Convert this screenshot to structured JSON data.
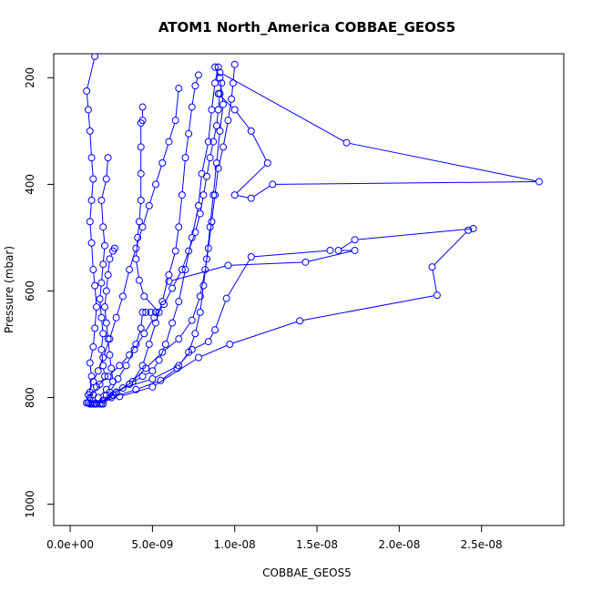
{
  "chart_data": {
    "type": "scatter",
    "title": "ATOM1 North_America COBBAE_GEOS5",
    "xlabel": "COBBAE_GEOS5",
    "ylabel": "Pressure (mbar)",
    "xlim": [
      -1e-09,
      3e-08
    ],
    "ylim": [
      1040,
      155
    ],
    "y_reversed": true,
    "x_ticks": [
      0,
      5e-09,
      1e-08,
      1.5e-08,
      2e-08,
      2.5e-08
    ],
    "x_tick_labels": [
      "0.0e+00",
      "5.0e-09",
      "1.0e-08",
      "1.5e-08",
      "2.0e-08",
      "2.5e-08"
    ],
    "y_ticks": [
      200,
      400,
      600,
      800,
      1000
    ],
    "y_tick_labels": [
      "200",
      "400",
      "600",
      "800",
      "1000"
    ],
    "grid": false,
    "marker": "open-circle",
    "color": "#0000ff",
    "series": [
      {
        "points": [
          [
            1e-09,
            810
          ],
          [
            1.2e-09,
            790
          ],
          [
            1.3e-09,
            760
          ],
          [
            1.2e-09,
            735
          ],
          [
            1.4e-09,
            705
          ],
          [
            1.5e-09,
            670
          ],
          [
            1.6e-09,
            630
          ],
          [
            1.5e-09,
            590
          ],
          [
            1.4e-09,
            560
          ],
          [
            1.3e-09,
            510
          ],
          [
            1.2e-09,
            470
          ],
          [
            1.3e-09,
            430
          ],
          [
            1.4e-09,
            390
          ],
          [
            1.3e-09,
            350
          ],
          [
            1.2e-09,
            300
          ],
          [
            1.1e-09,
            260
          ],
          [
            1e-09,
            225
          ],
          [
            1.5e-09,
            160
          ]
        ]
      },
      {
        "points": [
          [
            1.1e-09,
            810
          ],
          [
            1.4e-09,
            795
          ],
          [
            1.8e-09,
            775
          ],
          [
            2.1e-09,
            760
          ],
          [
            2e-09,
            740
          ],
          [
            1.9e-09,
            710
          ],
          [
            2e-09,
            680
          ],
          [
            1.9e-09,
            650
          ],
          [
            1.8e-09,
            615
          ],
          [
            1.9e-09,
            585
          ],
          [
            2e-09,
            550
          ],
          [
            2.1e-09,
            515
          ],
          [
            2e-09,
            480
          ],
          [
            1.9e-09,
            430
          ],
          [
            2.2e-09,
            390
          ],
          [
            2.3e-09,
            350
          ]
        ]
      },
      {
        "points": [
          [
            1.2e-09,
            812
          ],
          [
            1.7e-09,
            800
          ],
          [
            2.2e-09,
            785
          ],
          [
            2.6e-09,
            770
          ],
          [
            2.5e-09,
            745
          ],
          [
            2.4e-09,
            720
          ],
          [
            2.3e-09,
            690
          ],
          [
            2.2e-09,
            660
          ],
          [
            2.1e-09,
            630
          ],
          [
            2.2e-09,
            600
          ],
          [
            2.3e-09,
            570
          ],
          [
            2.4e-09,
            540
          ],
          [
            2.6e-09,
            525
          ],
          [
            2.7e-09,
            520
          ]
        ]
      },
      {
        "points": [
          [
            1.3e-09,
            812
          ],
          [
            2e-09,
            805
          ],
          [
            2.8e-09,
            790
          ],
          [
            3.6e-09,
            775
          ],
          [
            4.4e-09,
            760
          ],
          [
            5e-09,
            750
          ],
          [
            5.4e-09,
            730
          ],
          [
            5.8e-09,
            700
          ],
          [
            6.2e-09,
            660
          ],
          [
            6.6e-09,
            620
          ],
          [
            7e-09,
            560
          ],
          [
            7.4e-09,
            500
          ],
          [
            7.8e-09,
            440
          ],
          [
            8e-09,
            380
          ],
          [
            8.4e-09,
            320
          ],
          [
            8.6e-09,
            260
          ],
          [
            8.8e-09,
            210
          ],
          [
            9e-09,
            180
          ]
        ]
      },
      {
        "points": [
          [
            1.4e-09,
            812
          ],
          [
            2.5e-09,
            800
          ],
          [
            4e-09,
            785
          ],
          [
            5.5e-09,
            768
          ],
          [
            6.5e-09,
            745
          ],
          [
            7.2e-09,
            715
          ],
          [
            7.6e-09,
            680
          ],
          [
            7.9e-09,
            640
          ],
          [
            8.1e-09,
            590
          ],
          [
            8.3e-09,
            540
          ],
          [
            8.5e-09,
            480
          ],
          [
            8.7e-09,
            420
          ],
          [
            8.9e-09,
            360
          ],
          [
            9.1e-09,
            300
          ],
          [
            9.3e-09,
            250
          ],
          [
            9.1e-09,
            200
          ],
          [
            8.8e-09,
            180
          ]
        ]
      },
      {
        "points": [
          [
            1.5e-09,
            812
          ],
          [
            3e-09,
            798
          ],
          [
            5e-09,
            780
          ],
          [
            7.8e-09,
            725
          ],
          [
            9.7e-09,
            700
          ],
          [
            1.395e-08,
            656
          ],
          [
            2.23e-08,
            608
          ],
          [
            2.2e-08,
            555
          ],
          [
            2.42e-08,
            486
          ],
          [
            2.45e-08,
            483
          ],
          [
            1.73e-08,
            504
          ],
          [
            1.63e-08,
            524
          ],
          [
            1.73e-08,
            524
          ],
          [
            1.43e-08,
            546
          ],
          [
            9.6e-09,
            552
          ],
          [
            6e-09,
            582
          ]
        ]
      },
      {
        "points": [
          [
            1.6e-09,
            812
          ],
          [
            2.2e-09,
            796
          ],
          [
            3.2e-09,
            782
          ],
          [
            5e-09,
            765
          ],
          [
            6.6e-09,
            740
          ],
          [
            7.4e-09,
            710
          ],
          [
            8.4e-09,
            695
          ],
          [
            8.8e-09,
            673
          ],
          [
            9.5e-09,
            614
          ],
          [
            1.1e-08,
            536
          ],
          [
            1.58e-08,
            524
          ]
        ]
      },
      {
        "points": [
          [
            1.8e-09,
            812
          ],
          [
            2.6e-09,
            795
          ],
          [
            3.6e-09,
            775
          ],
          [
            4.6e-09,
            745
          ],
          [
            5.6e-09,
            715
          ],
          [
            6.6e-09,
            690
          ],
          [
            7.4e-09,
            655
          ],
          [
            7.9e-09,
            610
          ],
          [
            8.2e-09,
            560
          ],
          [
            8.4e-09,
            520
          ],
          [
            8.6e-09,
            470
          ],
          [
            8.8e-09,
            420
          ],
          [
            9e-09,
            370
          ],
          [
            9.3e-09,
            330
          ],
          [
            9.6e-09,
            280
          ],
          [
            9.8e-09,
            240
          ],
          [
            9.9e-09,
            210
          ],
          [
            1e-08,
            175
          ]
        ]
      },
      {
        "points": [
          [
            9e-09,
            230
          ],
          [
            1e-08,
            260
          ],
          [
            1.1e-08,
            300
          ],
          [
            1.2e-08,
            360
          ],
          [
            1e-08,
            420
          ],
          [
            1.1e-08,
            426
          ],
          [
            1.23e-08,
            400
          ],
          [
            2.85e-08,
            395
          ],
          [
            1.68e-08,
            322
          ],
          [
            9.1e-09,
            190
          ]
        ]
      },
      {
        "points": [
          [
            1.2e-09,
            800
          ],
          [
            1.6e-09,
            780
          ],
          [
            2.3e-09,
            760
          ],
          [
            3e-09,
            740
          ],
          [
            3.6e-09,
            720
          ],
          [
            4e-09,
            700
          ],
          [
            4.3e-09,
            670
          ],
          [
            4.4e-09,
            640
          ],
          [
            4.6e-09,
            640
          ],
          [
            4.9e-09,
            640
          ],
          [
            5.2e-09,
            640
          ],
          [
            5.4e-09,
            640
          ],
          [
            4.5e-09,
            610
          ],
          [
            4.2e-09,
            580
          ],
          [
            4e-09,
            540
          ],
          [
            4.1e-09,
            500
          ],
          [
            4.2e-09,
            470
          ],
          [
            4.3e-09,
            430
          ],
          [
            4.3e-09,
            380
          ],
          [
            4.3e-09,
            330
          ],
          [
            4.3e-09,
            285
          ],
          [
            4.4e-09,
            280
          ],
          [
            4.4e-09,
            255
          ]
        ]
      },
      {
        "points": [
          [
            2e-09,
            812
          ],
          [
            2.8e-09,
            790
          ],
          [
            3.8e-09,
            770
          ],
          [
            4.4e-09,
            740
          ],
          [
            4.8e-09,
            700
          ],
          [
            5.2e-09,
            660
          ],
          [
            5.6e-09,
            620
          ],
          [
            6e-09,
            570
          ],
          [
            6.4e-09,
            525
          ],
          [
            6.6e-09,
            480
          ],
          [
            6.8e-09,
            420
          ],
          [
            7e-09,
            350
          ],
          [
            7.2e-09,
            305
          ],
          [
            7.4e-09,
            255
          ],
          [
            7.6e-09,
            215
          ],
          [
            7.8e-09,
            195
          ]
        ]
      },
      {
        "points": [
          [
            1.1e-09,
            795
          ],
          [
            1.4e-09,
            770
          ],
          [
            1.7e-09,
            750
          ],
          [
            2e-09,
            725
          ],
          [
            2.4e-09,
            690
          ],
          [
            2.8e-09,
            650
          ],
          [
            3.2e-09,
            610
          ],
          [
            3.6e-09,
            560
          ],
          [
            4e-09,
            520
          ],
          [
            4.4e-09,
            480
          ],
          [
            4.8e-09,
            440
          ],
          [
            5.2e-09,
            400
          ],
          [
            5.6e-09,
            360
          ],
          [
            6e-09,
            320
          ],
          [
            6.4e-09,
            280
          ],
          [
            6.6e-09,
            220
          ]
        ]
      },
      {
        "points": [
          [
            1.9e-09,
            812
          ],
          [
            2.4e-09,
            790
          ],
          [
            2.9e-09,
            765
          ],
          [
            3.4e-09,
            740
          ],
          [
            3.9e-09,
            710
          ],
          [
            4.5e-09,
            680
          ],
          [
            5.1e-09,
            650
          ],
          [
            5.7e-09,
            625
          ],
          [
            6.2e-09,
            595
          ],
          [
            6.8e-09,
            560
          ],
          [
            7.2e-09,
            525
          ],
          [
            7.6e-09,
            490
          ],
          [
            7.9e-09,
            455
          ],
          [
            8.1e-09,
            420
          ],
          [
            8.3e-09,
            385
          ],
          [
            8.5e-09,
            350
          ],
          [
            8.7e-09,
            320
          ],
          [
            8.9e-09,
            290
          ],
          [
            9e-09,
            260
          ],
          [
            9.1e-09,
            230
          ],
          [
            9.2e-09,
            210
          ]
        ]
      }
    ]
  }
}
